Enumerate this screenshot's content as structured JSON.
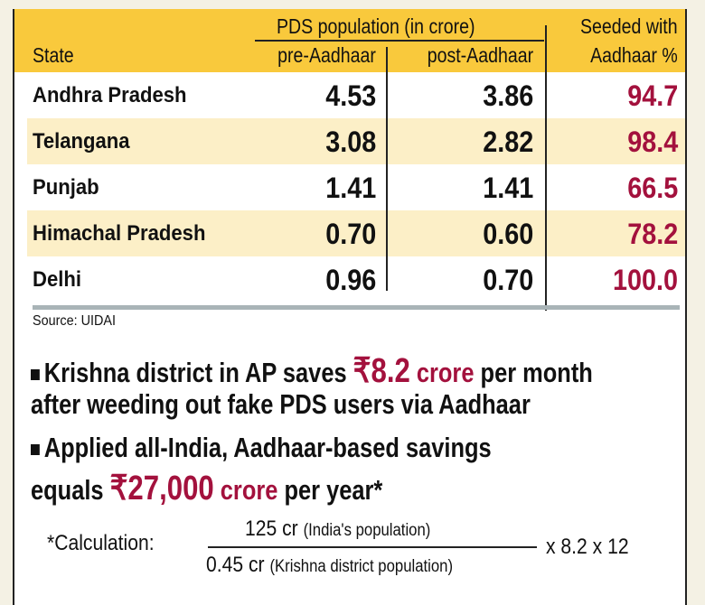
{
  "chart_data": {
    "type": "table",
    "header": {
      "state": "State",
      "group": "PDS population (in crore)",
      "pre": "pre-Aadhaar",
      "post": "post-Aadhaar",
      "seeded_line1": "Seeded with",
      "seeded_line2": "Aadhaar %"
    },
    "rows": [
      {
        "state": "Andhra Pradesh",
        "pre": "4.53",
        "post": "3.86",
        "seeded": "94.7"
      },
      {
        "state": "Telangana",
        "pre": "3.08",
        "post": "2.82",
        "seeded": "98.4"
      },
      {
        "state": "Punjab",
        "pre": "1.41",
        "post": "1.41",
        "seeded": "66.5"
      },
      {
        "state": "Himachal Pradesh",
        "pre": "0.70",
        "post": "0.60",
        "seeded": "78.2"
      },
      {
        "state": "Delhi",
        "pre": "0.96",
        "post": "0.70",
        "seeded": "100.0"
      }
    ],
    "source": "Source: UIDAI"
  },
  "colors": {
    "header": "#f9c93c",
    "alt_row": "#fcefc7",
    "accent": "#a3113d"
  },
  "bullets": [
    {
      "pre": "Krishna district in AP saves ",
      "amount": "₹8.2",
      "unit": " crore",
      "post": " per month",
      "line2": "after weeding out fake PDS users via Aadhaar"
    },
    {
      "line1": "Applied all-India, Aadhaar-based savings",
      "pre": "equals ",
      "amount": "₹27,000",
      "unit": " crore",
      "post": " per year*"
    }
  ],
  "calculation": {
    "label": "*Calculation:",
    "num": "125 cr",
    "num_note": "(India's population)",
    "den": "0.45 cr",
    "den_note": "(Krishna district population)",
    "tail": "x 8.2 x 12"
  }
}
